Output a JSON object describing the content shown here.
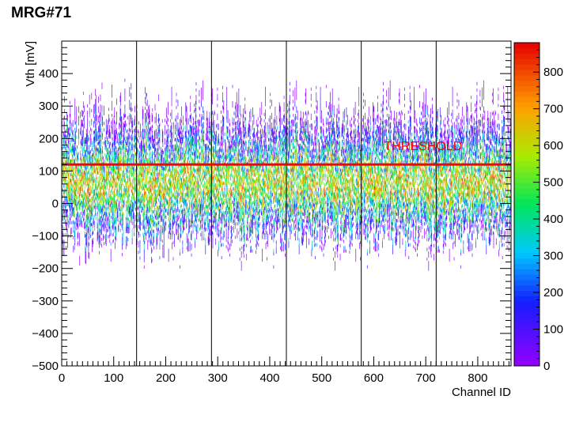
{
  "title": "MRG#71",
  "chart_data": {
    "type": "heatmap",
    "title": "MRG#71",
    "xlabel": "Channel ID",
    "ylabel": "Vth [mV]",
    "xlim": [
      0,
      864
    ],
    "ylim": [
      -500,
      500
    ],
    "x_ticks": [
      0,
      100,
      200,
      300,
      400,
      500,
      600,
      700,
      800
    ],
    "y_ticks": [
      -500,
      -400,
      -300,
      -200,
      -100,
      0,
      100,
      200,
      300,
      400
    ],
    "z_range": [
      0,
      880
    ],
    "z_ticks": [
      0,
      100,
      200,
      300,
      400,
      500,
      600,
      700,
      800
    ],
    "colormap": "rainbow",
    "threshold": {
      "label": "THRESHOLD",
      "value": 120,
      "color": "#ff0000"
    },
    "chip_boundaries": [
      144,
      288,
      432,
      576,
      720
    ],
    "band": {
      "channels": [
        0,
        864
      ],
      "typical_vth_range": [
        -250,
        450
      ],
      "center_vth": 60
    },
    "grid": false,
    "legend": "none"
  }
}
